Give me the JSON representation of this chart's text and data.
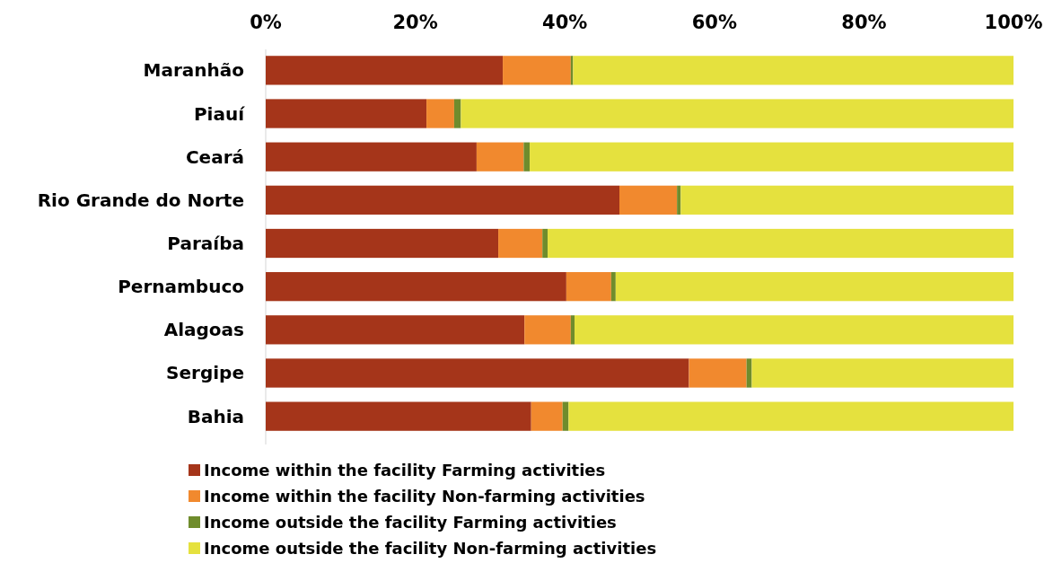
{
  "chart_data": {
    "type": "bar",
    "orientation": "horizontal",
    "stacked": true,
    "categories": [
      "Maranhão",
      "Piauí",
      "Ceará",
      "Rio Grande do Norte",
      "Paraíba",
      "Pernambuco",
      "Alagoas",
      "Sergipe",
      "Bahia"
    ],
    "series": [
      {
        "name": "Income within the facility Farming activities",
        "color": "#a5351a",
        "values": [
          31.7,
          21.5,
          28.2,
          47.3,
          31.1,
          40.2,
          34.6,
          56.6,
          35.5
        ]
      },
      {
        "name": "Income within the facility Non-farming activities",
        "color": "#f1892e",
        "values": [
          9.1,
          3.7,
          6.3,
          7.7,
          5.9,
          6.0,
          6.2,
          7.7,
          4.2
        ]
      },
      {
        "name": "Income outside the facility Farming activities",
        "color": "#6f8c2c",
        "values": [
          0.3,
          0.9,
          0.8,
          0.5,
          0.7,
          0.6,
          0.5,
          0.7,
          0.8
        ]
      },
      {
        "name": "Income outside the facility Non-farming activities",
        "color": "#e5e13e",
        "values": [
          58.9,
          73.9,
          64.7,
          44.5,
          62.3,
          53.2,
          58.7,
          35.0,
          59.5
        ]
      }
    ],
    "xlim": [
      0,
      100
    ],
    "xticks": [
      {
        "value": 0,
        "label": "0%"
      },
      {
        "value": 20,
        "label": "20%"
      },
      {
        "value": 40,
        "label": "40%"
      },
      {
        "value": 60,
        "label": "60%"
      },
      {
        "value": 80,
        "label": "80%"
      },
      {
        "value": 100,
        "label": "100%"
      }
    ],
    "grid": false,
    "legend": "bottom"
  }
}
